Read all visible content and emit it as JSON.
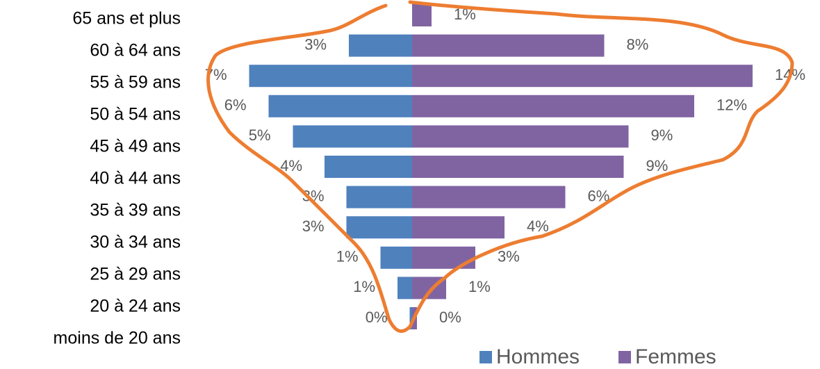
{
  "chart_data": {
    "type": "pyramid",
    "categories": [
      "65 ans et plus",
      "60 à 64 ans",
      "55 à 59 ans",
      "50 à 54 ans",
      "45 à 49 ans",
      "40 à 44 ans",
      "35 à 39 ans",
      "30 à 34 ans",
      "25 à 29 ans",
      "20 à 24 ans",
      "moins de 20 ans"
    ],
    "series": [
      {
        "name": "Hommes",
        "color": "#4f81bd",
        "values": [
          null,
          2.6,
          6.7,
          5.9,
          4.9,
          3.6,
          2.7,
          2.7,
          1.3,
          0.6,
          0.1
        ],
        "value_labels": [
          null,
          "3%",
          "7%",
          "6%",
          "5%",
          "4%",
          "3%",
          "3%",
          "1%",
          "1%",
          "0%"
        ]
      },
      {
        "name": "Femmes",
        "color": "#8064a2",
        "values": [
          0.8,
          7.9,
          14,
          11.6,
          8.9,
          8.7,
          6.3,
          3.8,
          2.6,
          1.4,
          0.2
        ],
        "value_labels": [
          "1%",
          "8%",
          "14%",
          "12%",
          "9%",
          "9%",
          "6%",
          "4%",
          "3%",
          "1%",
          "0%"
        ]
      }
    ],
    "legend": "bottom-right"
  }
}
